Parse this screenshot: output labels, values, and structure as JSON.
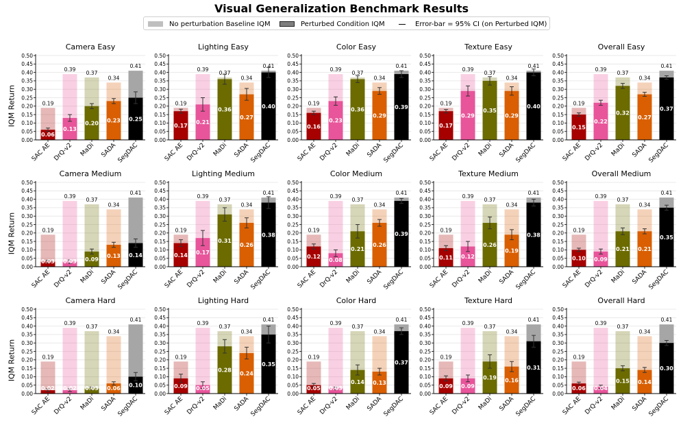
{
  "title": "Visual Generalization Benchmark Results",
  "legend": {
    "baseline": "No perturbation Baseline IQM",
    "perturbed": "Perturbed Condition IQM",
    "errorbar": "Error-bar = 95% CI (on Perturbed IQM)"
  },
  "ylabel": "IQM Return",
  "colors": {
    "SAC AE": "#a60000",
    "DrQ-v2": "#e8559b",
    "MaDi": "#6b6b00",
    "SADA": "#d95f02",
    "SegDAC": "#000000"
  },
  "chart_data": {
    "type": "bar",
    "methods": [
      "SAC AE",
      "DrQ-v2",
      "MaDi",
      "SADA",
      "SegDAC"
    ],
    "ylim": [
      0,
      0.5
    ],
    "yticks": [
      "0.00",
      "0.05",
      "0.10",
      "0.15",
      "0.20",
      "0.25",
      "0.30",
      "0.35",
      "0.40",
      "0.45",
      "0.50"
    ],
    "baseline": [
      0.19,
      0.39,
      0.37,
      0.34,
      0.41
    ],
    "baseline_labels": [
      "0.19",
      "0.39",
      "0.37",
      "0.34",
      "0.41"
    ],
    "panels": [
      {
        "title": "Camera Easy",
        "values": [
          0.06,
          0.13,
          0.2,
          0.23,
          0.25
        ],
        "labels": [
          "0.06",
          "0.13",
          "0.20",
          "0.23",
          "0.25"
        ],
        "err": [
          0.01,
          0.02,
          0.015,
          0.015,
          0.035
        ]
      },
      {
        "title": "Lighting Easy",
        "values": [
          0.17,
          0.21,
          0.36,
          0.27,
          0.4
        ],
        "labels": [
          "0.17",
          "0.21",
          "0.36",
          "0.27",
          "0.40"
        ],
        "err": [
          0.012,
          0.04,
          0.03,
          0.035,
          0.03
        ]
      },
      {
        "title": "Color Easy",
        "values": [
          0.16,
          0.23,
          0.36,
          0.29,
          0.39
        ],
        "labels": [
          "0.16",
          "0.23",
          "0.36",
          "0.29",
          "0.39"
        ],
        "err": [
          0.01,
          0.025,
          0.02,
          0.02,
          0.02
        ]
      },
      {
        "title": "Texture Easy",
        "values": [
          0.17,
          0.29,
          0.35,
          0.29,
          0.4
        ],
        "labels": [
          "0.17",
          "0.29",
          "0.35",
          "0.29",
          "0.40"
        ],
        "err": [
          0.01,
          0.03,
          0.025,
          0.025,
          0.02
        ]
      },
      {
        "title": "Overall Easy",
        "values": [
          0.15,
          0.22,
          0.32,
          0.27,
          0.37
        ],
        "labels": [
          "0.15",
          "0.22",
          "0.32",
          "0.27",
          "0.37"
        ],
        "err": [
          0.01,
          0.015,
          0.015,
          0.012,
          0.01
        ]
      },
      {
        "title": "Camera Medium",
        "values": [
          0.03,
          0.03,
          0.09,
          0.13,
          0.14
        ],
        "labels": [
          "0.03",
          "0.03",
          "0.09",
          "0.13",
          "0.14"
        ],
        "err": [
          0.008,
          0.01,
          0.015,
          0.015,
          0.025
        ]
      },
      {
        "title": "Lighting Medium",
        "values": [
          0.14,
          0.17,
          0.31,
          0.26,
          0.38
        ],
        "labels": [
          "0.14",
          "0.17",
          "0.31",
          "0.26",
          "0.38"
        ],
        "err": [
          0.02,
          0.045,
          0.04,
          0.03,
          0.035
        ]
      },
      {
        "title": "Color Medium",
        "values": [
          0.12,
          0.08,
          0.21,
          0.26,
          0.39
        ],
        "labels": [
          "0.12",
          "0.08",
          "0.21",
          "0.26",
          "0.39"
        ],
        "err": [
          0.015,
          0.02,
          0.04,
          0.02,
          0.015
        ]
      },
      {
        "title": "Texture Medium",
        "values": [
          0.11,
          0.12,
          0.26,
          0.19,
          0.38
        ],
        "labels": [
          "0.11",
          "0.12",
          "0.26",
          "0.19",
          "0.38"
        ],
        "err": [
          0.015,
          0.03,
          0.035,
          0.03,
          0.02
        ]
      },
      {
        "title": "Overall Medium",
        "values": [
          0.1,
          0.09,
          0.21,
          0.21,
          0.35
        ],
        "labels": [
          "0.10",
          "0.09",
          "0.21",
          "0.21",
          "0.35"
        ],
        "err": [
          0.01,
          0.015,
          0.02,
          0.015,
          0.015
        ]
      },
      {
        "title": "Camera Hard",
        "values": [
          0.02,
          0.02,
          0.03,
          0.06,
          0.1
        ],
        "labels": [
          "0.02",
          "0.02",
          "0.03",
          "0.06",
          "0.10"
        ],
        "err": [
          0.008,
          0.008,
          0.008,
          0.01,
          0.025
        ]
      },
      {
        "title": "Lighting Hard",
        "values": [
          0.09,
          0.05,
          0.28,
          0.24,
          0.35
        ],
        "labels": [
          "0.09",
          "0.05",
          "0.28",
          "0.24",
          "0.35"
        ],
        "err": [
          0.025,
          0.02,
          0.04,
          0.035,
          0.05
        ]
      },
      {
        "title": "Color Hard",
        "values": [
          0.05,
          0.03,
          0.14,
          0.13,
          0.37
        ],
        "labels": [
          "0.05",
          "0.03",
          "0.14",
          "0.13",
          "0.37"
        ],
        "err": [
          0.01,
          0.008,
          0.03,
          0.02,
          0.02
        ]
      },
      {
        "title": "Texture Hard",
        "values": [
          0.09,
          0.09,
          0.19,
          0.16,
          0.31
        ],
        "labels": [
          "0.09",
          "0.09",
          "0.19",
          "0.16",
          "0.31"
        ],
        "err": [
          0.015,
          0.02,
          0.04,
          0.03,
          0.035
        ]
      },
      {
        "title": "Overall Hard",
        "values": [
          0.06,
          0.04,
          0.15,
          0.14,
          0.3
        ],
        "labels": [
          "0.06",
          "0.04",
          "0.15",
          "0.14",
          "0.30"
        ],
        "err": [
          0.008,
          0.01,
          0.015,
          0.015,
          0.015
        ]
      }
    ]
  }
}
